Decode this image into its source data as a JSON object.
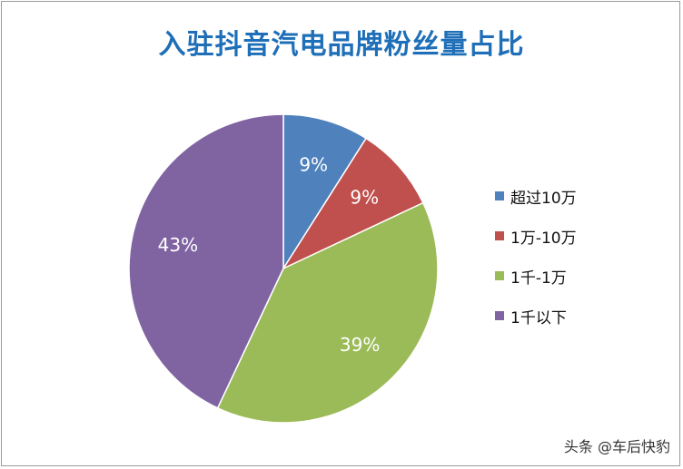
{
  "chart_data": {
    "type": "pie",
    "title": "入驻抖音汽电品牌粉丝量占比",
    "categories": [
      "超过10万",
      "1万-10万",
      "1千-1万",
      "1千以下"
    ],
    "values": [
      9,
      9,
      39,
      43
    ],
    "labels": [
      "9%",
      "9%",
      "39%",
      "43%"
    ],
    "colors": [
      "#4f81bd",
      "#c0504d",
      "#9bbb59",
      "#8064a2"
    ],
    "legend_position": "right",
    "start_angle": "12 o'clock",
    "direction": "clockwise"
  },
  "watermark": "头条 @车后快豹"
}
